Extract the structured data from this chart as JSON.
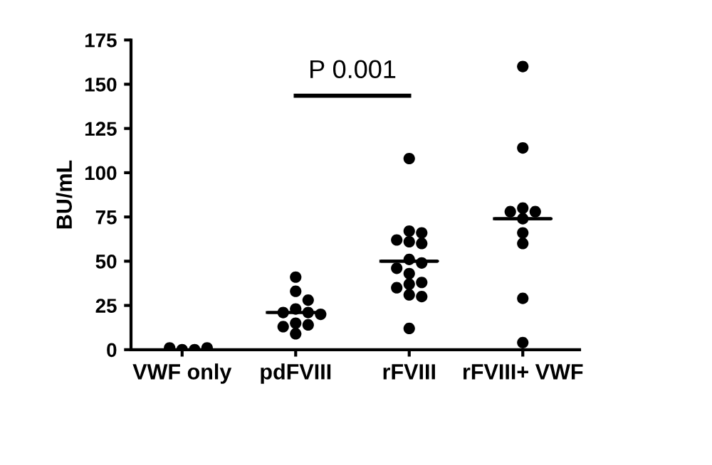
{
  "chart_data": {
    "type": "scatter",
    "ylabel": "BU/mL",
    "categories": [
      "VWF only",
      "pdFVIII",
      "rFVIII",
      "rFVIII+ VWF"
    ],
    "series": [
      {
        "color": "#000000",
        "x": [
          "VWF only",
          "VWF only",
          "VWF only",
          "VWF only",
          "pdFVIII",
          "pdFVIII",
          "pdFVIII",
          "pdFVIII",
          "pdFVIII",
          "pdFVIII",
          "pdFVIII",
          "pdFVIII",
          "pdFVIII",
          "pdFVIII",
          "pdFVIII",
          "rFVIII",
          "rFVIII",
          "rFVIII",
          "rFVIII",
          "rFVIII",
          "rFVIII",
          "rFVIII",
          "rFVIII",
          "rFVIII",
          "rFVIII",
          "rFVIII",
          "rFVIII",
          "rFVIII",
          "rFVIII",
          "rFVIII",
          "rFVIII",
          "rFVIII+ VWF",
          "rFVIII+ VWF",
          "rFVIII+ VWF",
          "rFVIII+ VWF",
          "rFVIII+ VWF",
          "rFVIII+ VWF",
          "rFVIII+ VWF",
          "rFVIII+ VWF",
          "rFVIII+ VWF",
          "rFVIII+ VWF"
        ],
        "values": [
          0,
          0,
          1,
          1,
          41,
          33,
          28,
          23,
          21,
          21,
          20,
          15,
          14,
          13,
          9,
          108,
          67,
          66,
          62,
          61,
          60,
          51,
          49,
          46,
          43,
          38,
          37,
          35,
          31,
          30,
          12,
          160,
          114,
          80,
          78,
          78,
          74,
          66,
          60,
          29,
          4
        ]
      },
      {
        "type": "box",
        "color": "#000000",
        "boxes": [
          null,
          {
            "low": 21,
            "q1": 21,
            "median": 21,
            "q3": 21,
            "high": 21
          },
          {
            "low": 50,
            "q1": 50,
            "median": 50,
            "q3": 50,
            "high": 50
          },
          {
            "low": 74,
            "q1": 74,
            "median": 74,
            "q3": 74,
            "high": 74
          }
        ]
      }
    ],
    "ylim": [
      0,
      175
    ],
    "yticks": [
      0,
      25,
      50,
      75,
      100,
      125,
      150,
      175
    ],
    "marker": "circle",
    "grid": false,
    "legend": false,
    "annotations": [
      "P 0.001"
    ]
  }
}
